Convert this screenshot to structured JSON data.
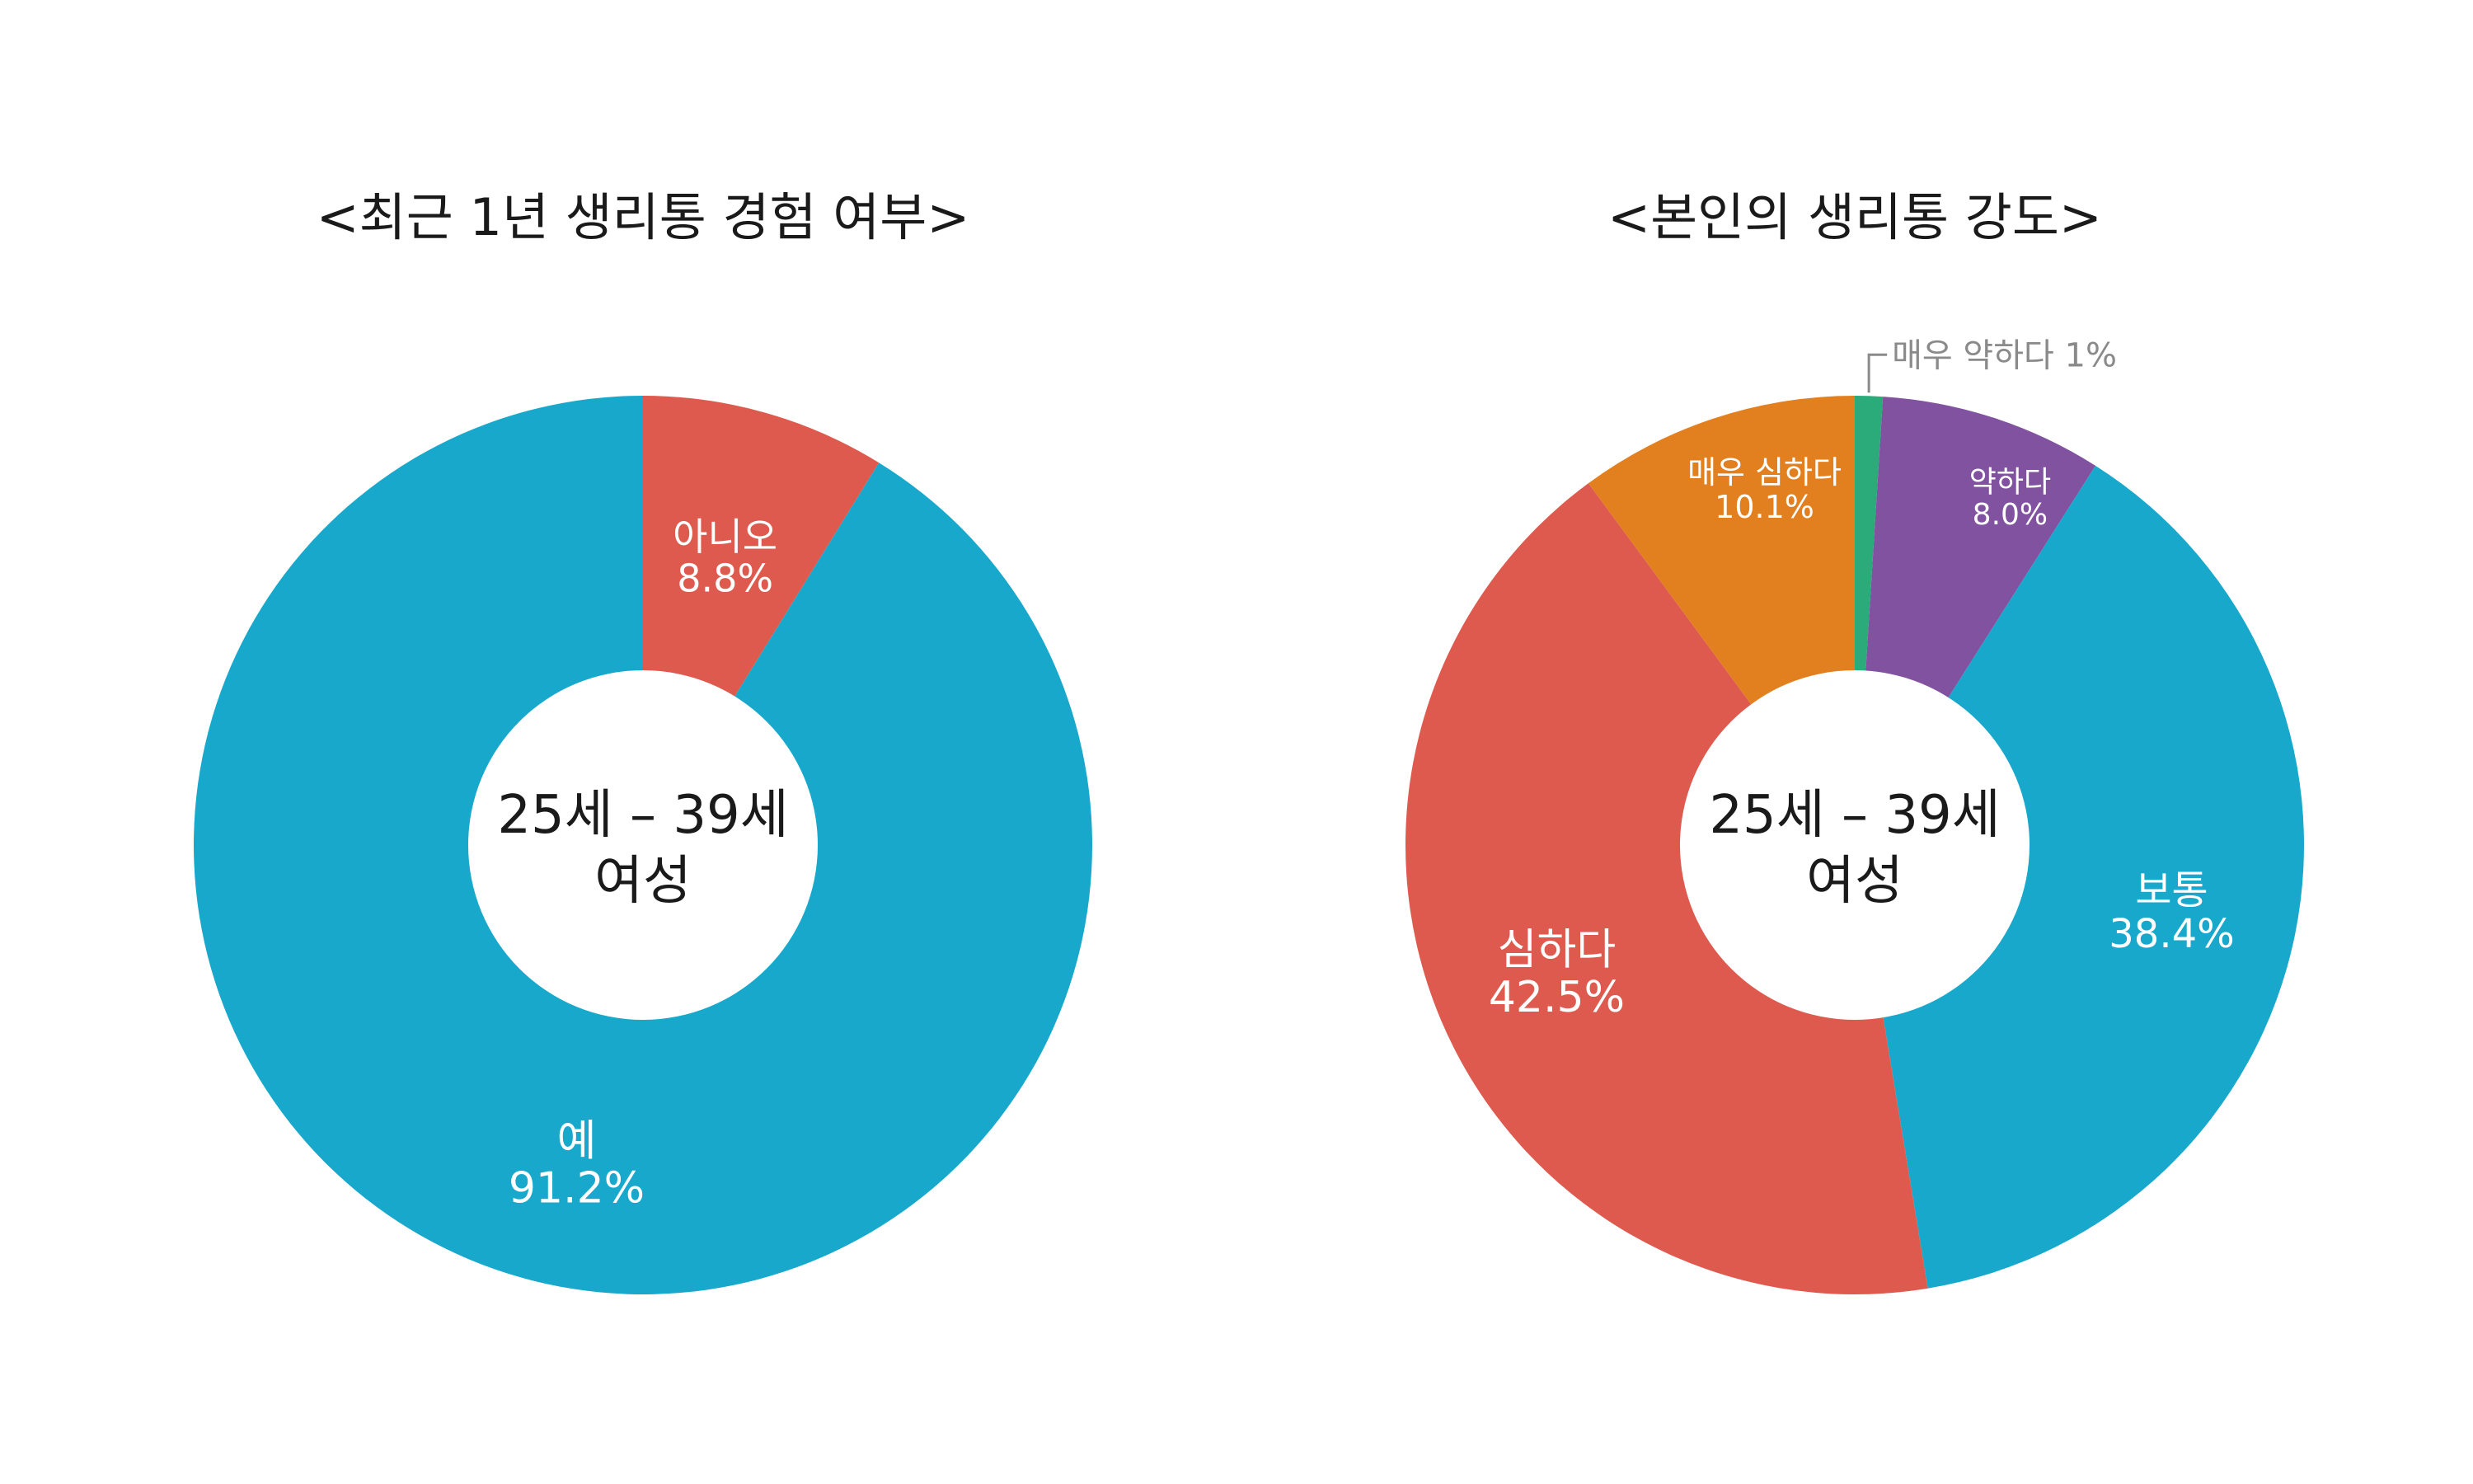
{
  "chart_data": [
    {
      "type": "pie",
      "title": "<최근 1년 생리통 경험 여부>",
      "center_label": [
        "25세 – 39세",
        "여성"
      ],
      "slices": [
        {
          "label": "아니오",
          "value": 8.8,
          "value_text": "8.8%",
          "color": "#df5a4e"
        },
        {
          "label": "예",
          "value": 91.2,
          "value_text": "91.2%",
          "color": "#17a8cb"
        }
      ]
    },
    {
      "type": "pie",
      "title": "<본인의 생리통 강도>",
      "center_label": [
        "25세 – 39세",
        "여성"
      ],
      "slices": [
        {
          "label": "매우 약하다",
          "value": 1,
          "value_text": "1%",
          "color": "#2bab7a"
        },
        {
          "label": "약하다",
          "value": 8.0,
          "value_text": "8.0%",
          "color": "#8152a0"
        },
        {
          "label": "보통",
          "value": 38.4,
          "value_text": "38.4%",
          "color": "#17a8cb"
        },
        {
          "label": "심하다",
          "value": 42.5,
          "value_text": "42.5%",
          "color": "#df5a4e"
        },
        {
          "label": "매우 심하다",
          "value": 10.1,
          "value_text": "10.1%",
          "color": "#e27f1f"
        }
      ]
    }
  ]
}
